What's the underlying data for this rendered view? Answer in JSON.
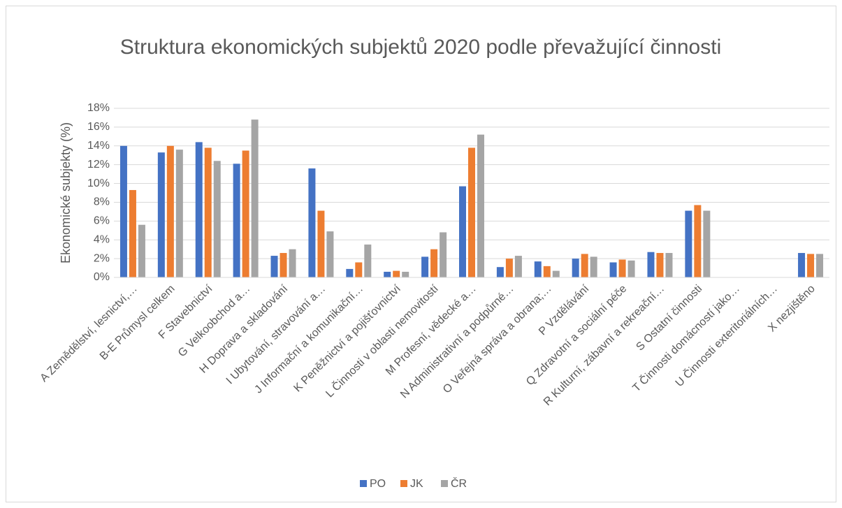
{
  "chart_data": {
    "type": "bar",
    "title": "Struktura ekonomických subjektů 2020 podle převažující činnosti",
    "ylabel": "Ekonomické subjekty (%)",
    "categories": [
      "A  Zemědělství, lesnictví,…",
      "B-E  Průmysl celkem",
      "F  Stavebnictví",
      "G  Velkoobchod a…",
      "H  Doprava a skladování",
      "I  Ubytování, stravování a…",
      "J  Informační a komunikační…",
      "K  Peněžnictví a pojišťovnictví",
      "L  Činnosti v oblasti nemovitostí",
      "M  Profesní, vědecké a…",
      "N Administrativní a podpůrné…",
      "O Veřejná správa a obrana;…",
      "P Vzdělávání",
      "Q Zdravotní a sociální péče",
      "R Kulturní, zábavní a rekreační…",
      "S Ostatní činnosti",
      "T Činnosti domácností jako…",
      "U Činnosti exteritoriálních…",
      "X nezjištěno"
    ],
    "series": [
      {
        "name": "PO",
        "color": "#4472c4",
        "values": [
          14.0,
          13.3,
          14.4,
          12.1,
          2.3,
          11.6,
          0.9,
          0.6,
          2.2,
          9.7,
          1.1,
          1.7,
          2.0,
          1.6,
          2.7,
          7.1,
          0,
          0,
          2.6
        ]
      },
      {
        "name": "JK",
        "color": "#ed7d31",
        "values": [
          9.3,
          14.0,
          13.8,
          13.5,
          2.6,
          7.1,
          1.6,
          0.7,
          3.0,
          13.8,
          2.0,
          1.2,
          2.5,
          1.9,
          2.6,
          7.7,
          0,
          0,
          2.5
        ]
      },
      {
        "name": "ČR",
        "color": "#a5a5a5",
        "values": [
          5.6,
          13.6,
          12.4,
          16.8,
          3.0,
          4.9,
          3.5,
          0.6,
          4.8,
          15.2,
          2.3,
          0.7,
          2.2,
          1.8,
          2.6,
          7.1,
          0,
          0,
          2.5
        ]
      }
    ],
    "ylim": [
      0,
      18
    ],
    "yticks": [
      {
        "value": 0,
        "label": "0%"
      },
      {
        "value": 2,
        "label": "2%"
      },
      {
        "value": 4,
        "label": "4%"
      },
      {
        "value": 6,
        "label": "6%"
      },
      {
        "value": 8,
        "label": "8%"
      },
      {
        "value": 10,
        "label": "10%"
      },
      {
        "value": 12,
        "label": "12%"
      },
      {
        "value": 14,
        "label": "14%"
      },
      {
        "value": 16,
        "label": "16%"
      },
      {
        "value": 18,
        "label": "18%"
      }
    ],
    "grid": true,
    "legend": "bottom"
  }
}
